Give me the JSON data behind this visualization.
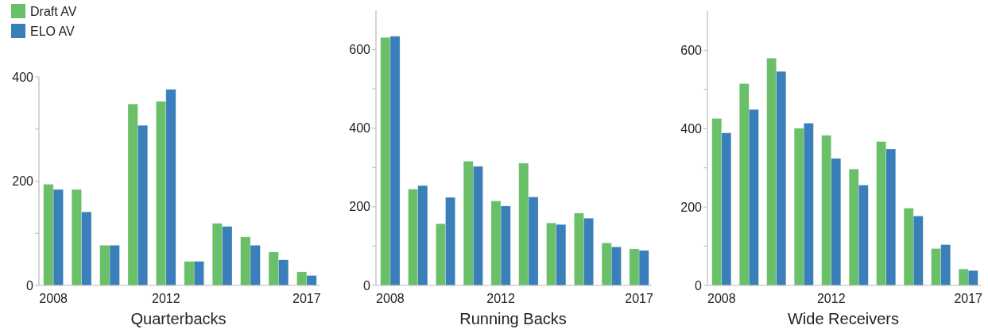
{
  "chart_data": [
    {
      "type": "bar",
      "xlabel": "Quarterbacks",
      "categories": [
        "2008",
        null,
        null,
        null,
        "2012",
        null,
        null,
        null,
        null,
        "2017"
      ],
      "ylim": [
        0,
        400
      ],
      "yticks": [
        0,
        {
          "value": 100,
          "label": null
        },
        200,
        {
          "value": 300,
          "label": null
        },
        400
      ],
      "legend": "top left",
      "series": [
        {
          "name": "Draft AV",
          "color": "#6abf69",
          "values": [
            194,
            184,
            77,
            348,
            353,
            46,
            119,
            93,
            64,
            26
          ]
        },
        {
          "name": "ELO AV",
          "color": "#3a7fba",
          "values": [
            184,
            141,
            77,
            307,
            376,
            46,
            113,
            77,
            49,
            19
          ]
        }
      ]
    },
    {
      "type": "bar",
      "xlabel": "Running Backs",
      "categories": [
        "2008",
        null,
        null,
        null,
        "2012",
        null,
        null,
        null,
        null,
        "2017"
      ],
      "ylim": [
        0,
        700
      ],
      "yticks": [
        0,
        {
          "value": 100,
          "label": null
        },
        200,
        {
          "value": 300,
          "label": null
        },
        400,
        {
          "value": 500,
          "label": null
        },
        600
      ],
      "series": [
        {
          "color": "#6abf69",
          "values": [
            631,
            245,
            157,
            316,
            215,
            311,
            159,
            184,
            108,
            93
          ]
        },
        {
          "color": "#3a7fba",
          "values": [
            634,
            254,
            224,
            303,
            202,
            225,
            155,
            171,
            98,
            89
          ]
        }
      ]
    },
    {
      "type": "bar",
      "xlabel": "Wide Receivers",
      "categories": [
        "2008",
        null,
        null,
        null,
        "2012",
        null,
        null,
        null,
        null,
        "2017"
      ],
      "ylim": [
        0,
        700
      ],
      "yticks": [
        0,
        {
          "value": 100,
          "label": null
        },
        200,
        {
          "value": 300,
          "label": null
        },
        400,
        {
          "value": 500,
          "label": null
        },
        600
      ],
      "series": [
        {
          "color": "#6abf69",
          "values": [
            426,
            515,
            580,
            401,
            383,
            297,
            367,
            197,
            94,
            42
          ]
        },
        {
          "color": "#3a7fba",
          "values": [
            389,
            449,
            546,
            414,
            324,
            256,
            348,
            177,
            104,
            38
          ]
        }
      ]
    }
  ]
}
